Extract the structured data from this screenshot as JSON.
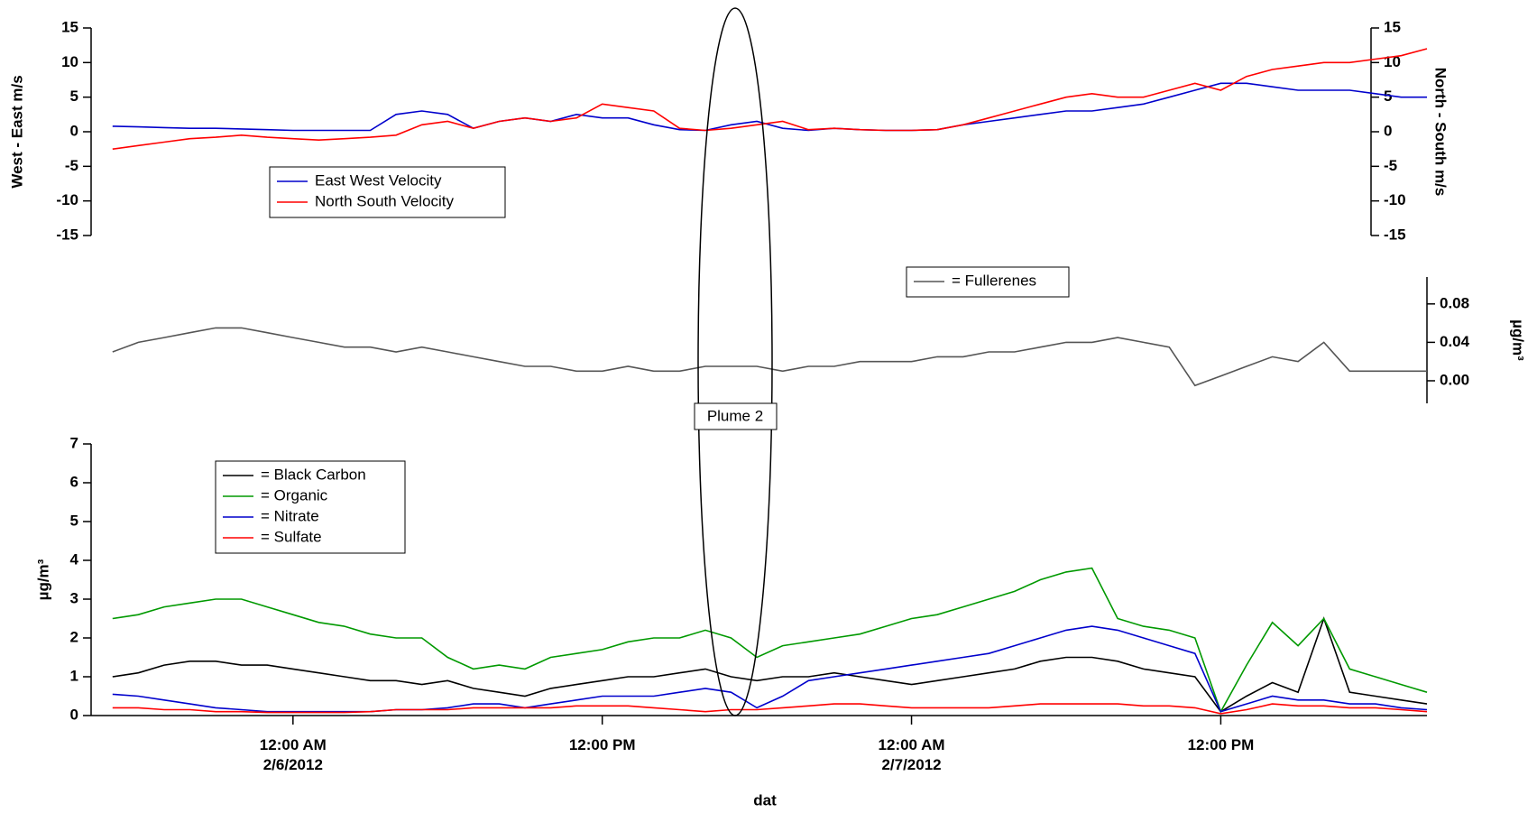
{
  "chart_data": [
    {
      "type": "line",
      "ylabel": "West - East m/s",
      "y2label": "North - South m/s",
      "xlim": [
        "2012-02-05T16:10",
        "2012-02-07T20:00"
      ],
      "x": [
        "2012-02-05T17:00",
        "2012-02-05T18:00",
        "2012-02-05T19:00",
        "2012-02-05T20:00",
        "2012-02-05T21:00",
        "2012-02-05T22:00",
        "2012-02-05T23:00",
        "2012-02-06T00:00",
        "2012-02-06T01:00",
        "2012-02-06T02:00",
        "2012-02-06T03:00",
        "2012-02-06T04:00",
        "2012-02-06T05:00",
        "2012-02-06T06:00",
        "2012-02-06T07:00",
        "2012-02-06T08:00",
        "2012-02-06T09:00",
        "2012-02-06T10:00",
        "2012-02-06T11:00",
        "2012-02-06T12:00",
        "2012-02-06T13:00",
        "2012-02-06T14:00",
        "2012-02-06T15:00",
        "2012-02-06T16:00",
        "2012-02-06T17:00",
        "2012-02-06T18:00",
        "2012-02-06T19:00",
        "2012-02-06T20:00",
        "2012-02-06T21:00",
        "2012-02-06T22:00",
        "2012-02-06T23:00",
        "2012-02-07T00:00",
        "2012-02-07T01:00",
        "2012-02-07T02:00",
        "2012-02-07T03:00",
        "2012-02-07T04:00",
        "2012-02-07T05:00",
        "2012-02-07T06:00",
        "2012-02-07T07:00",
        "2012-02-07T08:00",
        "2012-02-07T09:00",
        "2012-02-07T10:00",
        "2012-02-07T11:00",
        "2012-02-07T12:00",
        "2012-02-07T13:00",
        "2012-02-07T14:00",
        "2012-02-07T15:00",
        "2012-02-07T16:00",
        "2012-02-07T17:00",
        "2012-02-07T18:00",
        "2012-02-07T19:00",
        "2012-02-07T20:00"
      ],
      "ylim": [
        -15,
        15
      ],
      "yticks": [
        -15,
        -10,
        -5,
        0,
        5,
        10,
        15
      ],
      "y2lim": [
        -15,
        15
      ],
      "y2ticks": [
        -15,
        -10,
        -5,
        0,
        5,
        10,
        15
      ],
      "series": [
        {
          "name": "East West Velocity",
          "color": "#0000cc",
          "values": [
            0.8,
            0.7,
            0.6,
            0.5,
            0.5,
            0.4,
            0.3,
            0.2,
            0.2,
            0.2,
            0.2,
            2.5,
            3,
            2.5,
            0.5,
            1.5,
            2,
            1.5,
            2.5,
            2,
            2,
            1,
            0.3,
            0.2,
            1,
            1.5,
            0.5,
            0.2,
            0.5,
            0.3,
            0.2,
            0.2,
            0.3,
            1,
            1.5,
            2,
            2.5,
            3,
            3,
            3.5,
            4,
            5,
            6,
            7,
            7,
            6.5,
            6,
            6,
            6,
            5.5,
            5,
            5
          ]
        },
        {
          "name": "North South Velocity",
          "color": "#ff0000",
          "axis": "y2",
          "values": [
            -2.5,
            -2,
            -1.5,
            -1,
            -0.8,
            -0.5,
            -0.8,
            -1,
            -1.2,
            -1,
            -0.8,
            -0.5,
            1,
            1.5,
            0.5,
            1.5,
            2,
            1.5,
            2,
            4,
            3.5,
            3,
            0.5,
            0.2,
            0.5,
            1,
            1.5,
            0.3,
            0.5,
            0.3,
            0.2,
            0.2,
            0.3,
            1,
            2,
            3,
            4,
            5,
            5.5,
            5,
            5,
            6,
            7,
            6,
            8,
            9,
            9.5,
            10,
            10,
            10.5,
            11,
            12
          ]
        }
      ]
    },
    {
      "type": "line",
      "ylabel": "µg/m³",
      "y_axis_side": "right",
      "annotation": "Plume 2",
      "xlim": [
        "2012-02-05T16:10",
        "2012-02-07T20:00"
      ],
      "x": [
        "2012-02-05T17:00",
        "2012-02-05T18:00",
        "2012-02-05T19:00",
        "2012-02-05T20:00",
        "2012-02-05T21:00",
        "2012-02-05T22:00",
        "2012-02-05T23:00",
        "2012-02-06T00:00",
        "2012-02-06T01:00",
        "2012-02-06T02:00",
        "2012-02-06T03:00",
        "2012-02-06T04:00",
        "2012-02-06T05:00",
        "2012-02-06T06:00",
        "2012-02-06T07:00",
        "2012-02-06T08:00",
        "2012-02-06T09:00",
        "2012-02-06T10:00",
        "2012-02-06T11:00",
        "2012-02-06T12:00",
        "2012-02-06T13:00",
        "2012-02-06T14:00",
        "2012-02-06T15:00",
        "2012-02-06T16:00",
        "2012-02-06T17:00",
        "2012-02-06T18:00",
        "2012-02-06T19:00",
        "2012-02-06T20:00",
        "2012-02-06T21:00",
        "2012-02-06T22:00",
        "2012-02-06T23:00",
        "2012-02-07T00:00",
        "2012-02-07T01:00",
        "2012-02-07T02:00",
        "2012-02-07T03:00",
        "2012-02-07T04:00",
        "2012-02-07T05:00",
        "2012-02-07T06:00",
        "2012-02-07T07:00",
        "2012-02-07T08:00",
        "2012-02-07T09:00",
        "2012-02-07T10:00",
        "2012-02-07T11:00",
        "2012-02-07T12:00",
        "2012-02-07T13:00",
        "2012-02-07T14:00",
        "2012-02-07T15:00",
        "2012-02-07T16:00",
        "2012-02-07T17:00",
        "2012-02-07T18:00",
        "2012-02-07T19:00",
        "2012-02-07T20:00"
      ],
      "ylim": [
        -0.0235,
        0.108
      ],
      "yticks": [
        {
          "value": 0,
          "label": "0.00"
        },
        {
          "value": 0.04,
          "label": "0.04"
        },
        {
          "value": 0.08,
          "label": "0.08"
        }
      ],
      "series": [
        {
          "name": "= Fullerenes",
          "color": "#555555",
          "values": [
            0.03,
            0.04,
            0.045,
            0.05,
            0.055,
            0.055,
            0.05,
            0.045,
            0.04,
            0.035,
            0.035,
            0.03,
            0.035,
            0.03,
            0.025,
            0.02,
            0.015,
            0.015,
            0.01,
            0.01,
            0.015,
            0.01,
            0.01,
            0.015,
            0.015,
            0.015,
            0.01,
            0.015,
            0.015,
            0.02,
            0.02,
            0.02,
            0.025,
            0.025,
            0.03,
            0.03,
            0.035,
            0.04,
            0.04,
            0.045,
            0.04,
            0.035,
            -0.005,
            0.005,
            0.015,
            0.025,
            0.02,
            0.04,
            0.01,
            0.01,
            0.01,
            0.01
          ]
        }
      ]
    },
    {
      "type": "line",
      "ylabel": "µg/m³",
      "xlabel": "dat",
      "xlim": [
        "2012-02-05T16:10",
        "2012-02-07T20:00"
      ],
      "xticks": [
        {
          "value": "2012-02-06T00:00",
          "label": "12:00 AM\n2/6/2012"
        },
        {
          "value": "2012-02-06T12:00",
          "label": "12:00 PM"
        },
        {
          "value": "2012-02-07T00:00",
          "label": "12:00 AM\n2/7/2012"
        },
        {
          "value": "2012-02-07T12:00",
          "label": "12:00 PM"
        }
      ],
      "x": [
        "2012-02-05T17:00",
        "2012-02-05T18:00",
        "2012-02-05T19:00",
        "2012-02-05T20:00",
        "2012-02-05T21:00",
        "2012-02-05T22:00",
        "2012-02-05T23:00",
        "2012-02-06T00:00",
        "2012-02-06T01:00",
        "2012-02-06T02:00",
        "2012-02-06T03:00",
        "2012-02-06T04:00",
        "2012-02-06T05:00",
        "2012-02-06T06:00",
        "2012-02-06T07:00",
        "2012-02-06T08:00",
        "2012-02-06T09:00",
        "2012-02-06T10:00",
        "2012-02-06T11:00",
        "2012-02-06T12:00",
        "2012-02-06T13:00",
        "2012-02-06T14:00",
        "2012-02-06T15:00",
        "2012-02-06T16:00",
        "2012-02-06T17:00",
        "2012-02-06T18:00",
        "2012-02-06T19:00",
        "2012-02-06T20:00",
        "2012-02-06T21:00",
        "2012-02-06T22:00",
        "2012-02-06T23:00",
        "2012-02-07T00:00",
        "2012-02-07T01:00",
        "2012-02-07T02:00",
        "2012-02-07T03:00",
        "2012-02-07T04:00",
        "2012-02-07T05:00",
        "2012-02-07T06:00",
        "2012-02-07T07:00",
        "2012-02-07T08:00",
        "2012-02-07T09:00",
        "2012-02-07T10:00",
        "2012-02-07T11:00",
        "2012-02-07T12:00",
        "2012-02-07T13:00",
        "2012-02-07T14:00",
        "2012-02-07T15:00",
        "2012-02-07T16:00",
        "2012-02-07T17:00",
        "2012-02-07T18:00",
        "2012-02-07T19:00",
        "2012-02-07T20:00"
      ],
      "ylim": [
        0,
        7
      ],
      "yticks": [
        0,
        1,
        2,
        3,
        4,
        5,
        6,
        7
      ],
      "series": [
        {
          "name": "= Black Carbon",
          "color": "#000000",
          "values": [
            1.0,
            1.1,
            1.3,
            1.4,
            1.4,
            1.3,
            1.3,
            1.2,
            1.1,
            1.0,
            0.9,
            0.9,
            0.8,
            0.9,
            0.7,
            0.6,
            0.5,
            0.7,
            0.8,
            0.9,
            1.0,
            1.0,
            1.1,
            1.2,
            1.0,
            0.9,
            1.0,
            1.0,
            1.1,
            1.0,
            0.9,
            0.8,
            0.9,
            1.0,
            1.1,
            1.2,
            1.4,
            1.5,
            1.5,
            1.4,
            1.2,
            1.1,
            1.0,
            0.1,
            0.5,
            0.85,
            0.6,
            2.5,
            0.6,
            0.5,
            0.4,
            0.3
          ]
        },
        {
          "name": "= Organic",
          "color": "#009900",
          "values": [
            2.5,
            2.6,
            2.8,
            2.9,
            3.0,
            3.0,
            2.8,
            2.6,
            2.4,
            2.3,
            2.1,
            2.0,
            2.0,
            1.5,
            1.2,
            1.3,
            1.2,
            1.5,
            1.6,
            1.7,
            1.9,
            2.0,
            2.0,
            2.2,
            2.0,
            1.5,
            1.8,
            1.9,
            2.0,
            2.1,
            2.3,
            2.5,
            2.6,
            2.8,
            3.0,
            3.2,
            3.5,
            3.7,
            3.8,
            2.5,
            2.3,
            2.2,
            2.0,
            0.1,
            1.3,
            2.4,
            1.8,
            2.5,
            1.2,
            1.0,
            0.8,
            0.6
          ]
        },
        {
          "name": "= Nitrate",
          "color": "#0000cc",
          "values": [
            0.55,
            0.5,
            0.4,
            0.3,
            0.2,
            0.15,
            0.1,
            0.1,
            0.1,
            0.1,
            0.1,
            0.15,
            0.15,
            0.2,
            0.3,
            0.3,
            0.2,
            0.3,
            0.4,
            0.5,
            0.5,
            0.5,
            0.6,
            0.7,
            0.6,
            0.2,
            0.5,
            0.9,
            1.0,
            1.1,
            1.2,
            1.3,
            1.4,
            1.5,
            1.6,
            1.8,
            2.0,
            2.2,
            2.3,
            2.2,
            2.0,
            1.8,
            1.6,
            0.1,
            0.3,
            0.5,
            0.4,
            0.4,
            0.3,
            0.3,
            0.2,
            0.15
          ]
        },
        {
          "name": "= Sulfate",
          "color": "#ff0000",
          "values": [
            0.2,
            0.2,
            0.15,
            0.15,
            0.1,
            0.1,
            0.08,
            0.08,
            0.08,
            0.08,
            0.1,
            0.15,
            0.15,
            0.15,
            0.2,
            0.2,
            0.2,
            0.2,
            0.25,
            0.25,
            0.25,
            0.2,
            0.15,
            0.1,
            0.15,
            0.15,
            0.2,
            0.25,
            0.3,
            0.3,
            0.25,
            0.2,
            0.2,
            0.2,
            0.2,
            0.25,
            0.3,
            0.3,
            0.3,
            0.3,
            0.25,
            0.25,
            0.2,
            0.05,
            0.15,
            0.3,
            0.25,
            0.25,
            0.2,
            0.2,
            0.15,
            0.1
          ]
        }
      ]
    }
  ]
}
